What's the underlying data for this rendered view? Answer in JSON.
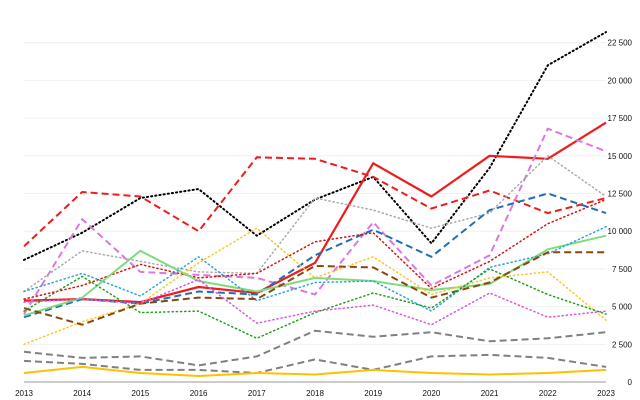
{
  "chart_data": {
    "type": "line",
    "title": "",
    "xlabel": "",
    "ylabel": "",
    "x": [
      "2013",
      "2014",
      "2015",
      "2016",
      "2017",
      "2018",
      "2019",
      "2020",
      "2021",
      "2022",
      "2023"
    ],
    "ylim": [
      0,
      25000
    ],
    "y_ticks": [
      0,
      2500,
      5000,
      7500,
      10000,
      12500,
      15000,
      17500,
      20000,
      22500
    ],
    "y_tick_labels": [
      "0",
      "2 500",
      "5 000",
      "7 500",
      "10 000",
      "12 500",
      "15 000",
      "17 500",
      "20 000",
      "22 500"
    ],
    "y_axis_side": "right",
    "grid": "horizontal",
    "legend": "none",
    "series": [
      {
        "color": "#000000",
        "dash": "dotted",
        "width": 2,
        "values": [
          8100,
          9900,
          12200,
          12800,
          9700,
          12100,
          13600,
          9200,
          14200,
          21000,
          23200
        ]
      },
      {
        "color": "#ee1c1c",
        "dash": "solid",
        "width": 2.2,
        "values": [
          5400,
          5500,
          5300,
          6300,
          5900,
          7900,
          14500,
          12300,
          15000,
          14800,
          17200
        ]
      },
      {
        "color": "#ee1c1c",
        "dash": "dashed",
        "width": 2,
        "values": [
          9000,
          12600,
          12300,
          10000,
          14900,
          14800,
          13600,
          11500,
          12700,
          11200,
          12200
        ]
      },
      {
        "color": "#dd77dd",
        "dash": "dashed",
        "width": 2,
        "values": [
          4500,
          10800,
          7300,
          7100,
          6900,
          5800,
          10600,
          6400,
          8400,
          16800,
          15300
        ]
      },
      {
        "color": "#aaaaaa",
        "dash": "dotted",
        "width": 1.5,
        "values": [
          6000,
          8700,
          8000,
          7300,
          7200,
          12200,
          11400,
          10200,
          11200,
          15000,
          12300
        ]
      },
      {
        "color": "#1f6fb8",
        "dash": "dashed",
        "width": 2,
        "values": [
          4300,
          5500,
          5200,
          6000,
          5800,
          8400,
          10100,
          8300,
          11400,
          12500,
          11200
        ]
      },
      {
        "color": "#d91010",
        "dash": "dotted",
        "width": 1.5,
        "values": [
          5500,
          6400,
          7800,
          6900,
          7200,
          9300,
          9900,
          6200,
          8000,
          10500,
          12100
        ]
      },
      {
        "color": "#7ddc7d",
        "dash": "solid",
        "width": 2,
        "values": [
          4400,
          5600,
          8700,
          6700,
          6000,
          6900,
          6700,
          6100,
          6500,
          8800,
          9700
        ]
      },
      {
        "color": "#2aa6d8",
        "dash": "dotted",
        "width": 1.5,
        "values": [
          6000,
          7200,
          5700,
          8300,
          5400,
          6600,
          6700,
          4700,
          7600,
          8500,
          10300
        ]
      },
      {
        "color": "#ffc526",
        "dash": "dotted",
        "width": 1.5,
        "values": [
          2500,
          4000,
          5200,
          7900,
          10200,
          6900,
          8300,
          5800,
          6900,
          7300,
          4100
        ]
      },
      {
        "color": "#8b4513",
        "dash": "dashed",
        "width": 2,
        "values": [
          4900,
          3800,
          5200,
          5600,
          5500,
          7700,
          7600,
          5600,
          6600,
          8600,
          8600
        ]
      },
      {
        "color": "#1fa01f",
        "dash": "dotted",
        "width": 1.5,
        "values": [
          4700,
          7000,
          4600,
          4700,
          2900,
          4600,
          5900,
          4900,
          7500,
          5800,
          4500
        ]
      },
      {
        "color": "#dd55dd",
        "dash": "dotted",
        "width": 1.5,
        "values": [
          5300,
          5500,
          5200,
          6800,
          3900,
          4700,
          5100,
          3800,
          5900,
          4300,
          4700
        ]
      },
      {
        "color": "#808080",
        "dash": "dashed",
        "width": 2,
        "values": [
          2000,
          1600,
          1700,
          1100,
          1700,
          3400,
          3000,
          3300,
          2700,
          2900,
          3300
        ]
      },
      {
        "color": "#808080",
        "dash": "dashed",
        "width": 2,
        "values": [
          1400,
          1200,
          800,
          800,
          600,
          1500,
          800,
          1700,
          1800,
          1600,
          1000
        ]
      },
      {
        "color": "#ffc000",
        "dash": "solid",
        "width": 2,
        "values": [
          600,
          1000,
          600,
          400,
          600,
          500,
          800,
          600,
          500,
          600,
          800
        ]
      }
    ]
  }
}
